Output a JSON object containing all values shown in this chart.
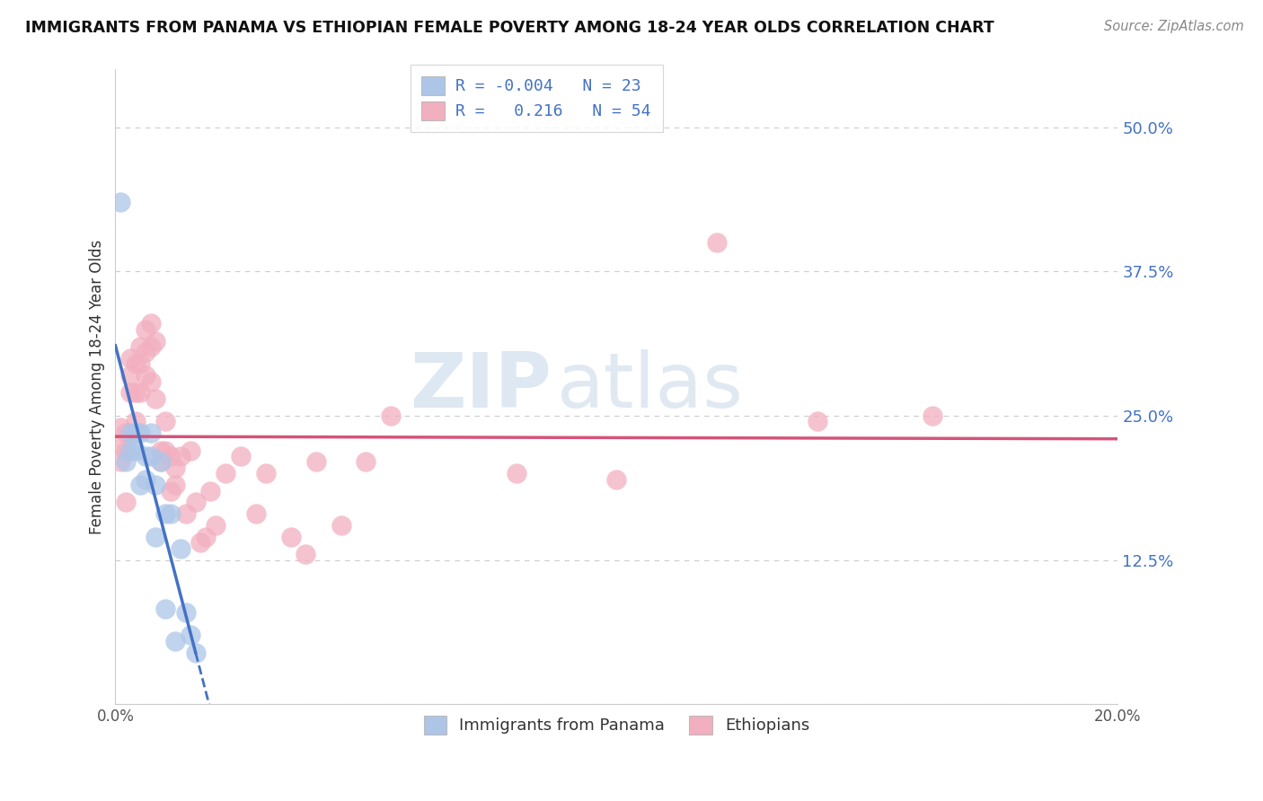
{
  "title": "IMMIGRANTS FROM PANAMA VS ETHIOPIAN FEMALE POVERTY AMONG 18-24 YEAR OLDS CORRELATION CHART",
  "source": "Source: ZipAtlas.com",
  "ylabel": "Female Poverty Among 18-24 Year Olds",
  "xlim": [
    0.0,
    0.2
  ],
  "ylim": [
    0.0,
    0.55
  ],
  "yticks": [
    0.0,
    0.125,
    0.25,
    0.375,
    0.5
  ],
  "yticklabels": [
    "",
    "12.5%",
    "25.0%",
    "37.5%",
    "50.0%"
  ],
  "xticks": [
    0.0,
    0.05,
    0.1,
    0.15,
    0.2
  ],
  "xticklabels": [
    "0.0%",
    "",
    "",
    "",
    "20.0%"
  ],
  "color_panama": "#adc6e8",
  "color_ethiopia": "#f2afc0",
  "line_color_panama": "#4472c4",
  "line_color_ethiopia": "#d4547a",
  "watermark_zip": "ZIP",
  "watermark_atlas": "atlas",
  "panama_x": [
    0.001,
    0.002,
    0.003,
    0.003,
    0.004,
    0.004,
    0.005,
    0.005,
    0.006,
    0.006,
    0.007,
    0.007,
    0.008,
    0.008,
    0.009,
    0.01,
    0.01,
    0.011,
    0.012,
    0.013,
    0.014,
    0.015,
    0.016
  ],
  "panama_y": [
    0.435,
    0.21,
    0.235,
    0.22,
    0.235,
    0.22,
    0.235,
    0.19,
    0.215,
    0.195,
    0.235,
    0.215,
    0.19,
    0.145,
    0.21,
    0.165,
    0.083,
    0.165,
    0.055,
    0.135,
    0.08,
    0.06,
    0.045
  ],
  "ethiopia_x": [
    0.001,
    0.001,
    0.001,
    0.002,
    0.002,
    0.002,
    0.003,
    0.003,
    0.003,
    0.004,
    0.004,
    0.004,
    0.005,
    0.005,
    0.005,
    0.006,
    0.006,
    0.006,
    0.007,
    0.007,
    0.007,
    0.008,
    0.008,
    0.009,
    0.009,
    0.01,
    0.01,
    0.011,
    0.011,
    0.012,
    0.012,
    0.013,
    0.014,
    0.015,
    0.016,
    0.017,
    0.018,
    0.019,
    0.02,
    0.022,
    0.025,
    0.028,
    0.03,
    0.035,
    0.038,
    0.04,
    0.045,
    0.05,
    0.055,
    0.08,
    0.1,
    0.12,
    0.14,
    0.163
  ],
  "ethiopia_y": [
    0.24,
    0.225,
    0.21,
    0.235,
    0.22,
    0.175,
    0.3,
    0.285,
    0.27,
    0.295,
    0.27,
    0.245,
    0.31,
    0.295,
    0.27,
    0.325,
    0.305,
    0.285,
    0.33,
    0.31,
    0.28,
    0.315,
    0.265,
    0.22,
    0.21,
    0.245,
    0.22,
    0.215,
    0.185,
    0.205,
    0.19,
    0.215,
    0.165,
    0.22,
    0.175,
    0.14,
    0.145,
    0.185,
    0.155,
    0.2,
    0.215,
    0.165,
    0.2,
    0.145,
    0.13,
    0.21,
    0.155,
    0.21,
    0.25,
    0.2,
    0.195,
    0.4,
    0.245,
    0.25
  ],
  "panama_r": -0.004,
  "panama_n": 23,
  "ethiopia_r": 0.216,
  "ethiopia_n": 54,
  "background_color": "#ffffff",
  "grid_color": "#cccccc"
}
